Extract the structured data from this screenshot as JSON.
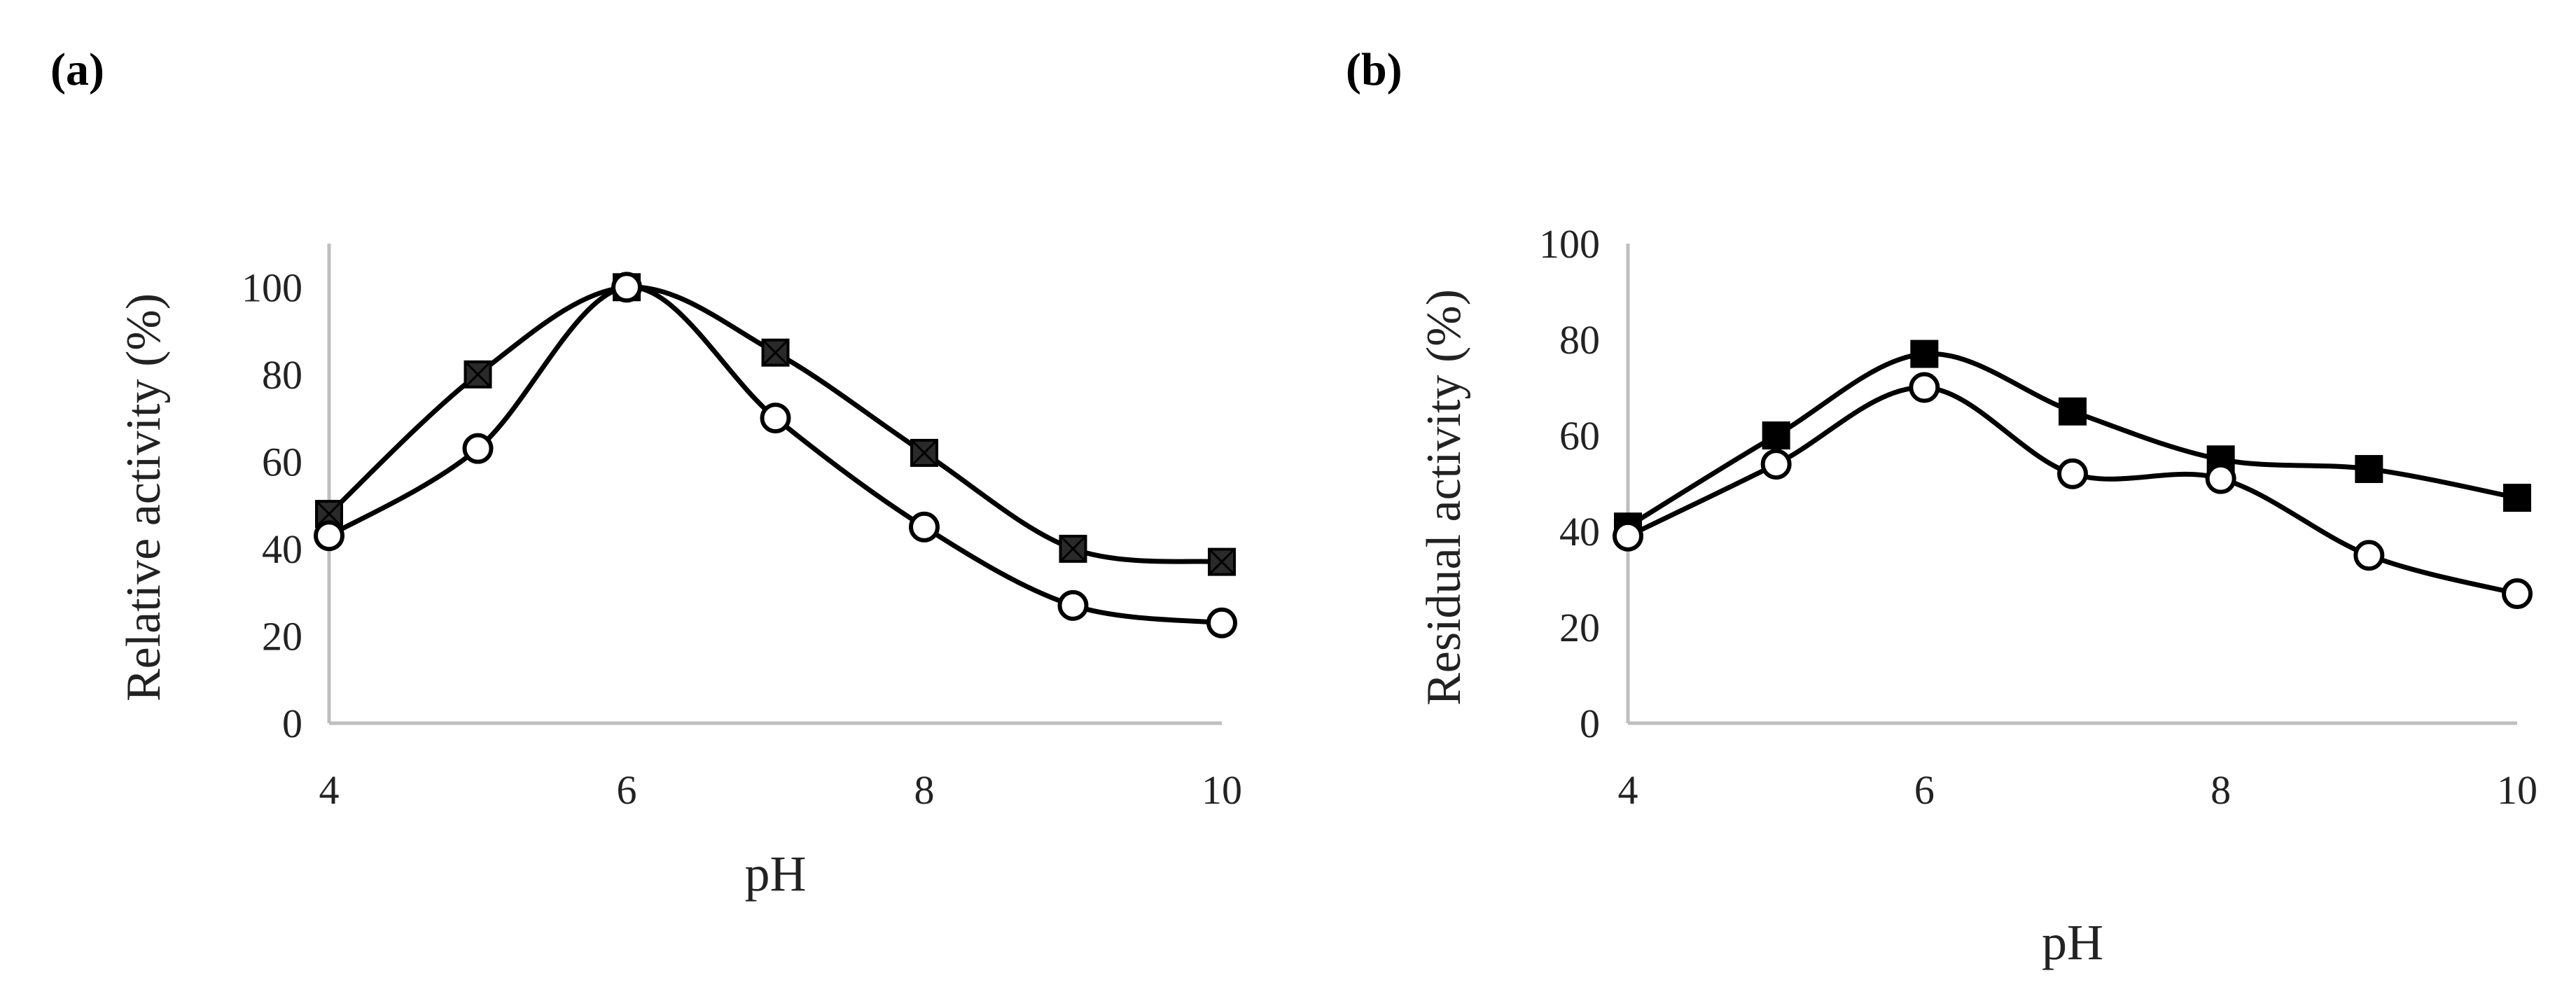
{
  "panels": {
    "a": {
      "label": "(a)"
    },
    "b": {
      "label": "(b)"
    }
  },
  "colors": {
    "axis": "#bfbfbf",
    "line": "#000000",
    "marker_fill_square": "#2a2a2a",
    "marker_fill_circle": "#ffffff"
  },
  "chart_data": [
    {
      "id": "a",
      "type": "line",
      "title": "",
      "xlabel": "pH",
      "ylabel": "Relative activity (%)",
      "x": [
        4,
        5,
        6,
        7,
        8,
        9,
        10
      ],
      "xlim": [
        4,
        10
      ],
      "ylim": [
        0,
        110
      ],
      "xticks": [
        4,
        6,
        8,
        10
      ],
      "yticks": [
        0,
        20,
        40,
        60,
        80,
        100
      ],
      "grid": false,
      "series": [
        {
          "name": "square-x series",
          "marker": "square-x",
          "values": [
            48,
            80,
            100,
            85,
            62,
            40,
            37
          ]
        },
        {
          "name": "open-circle series",
          "marker": "circle",
          "values": [
            43,
            63,
            100,
            70,
            45,
            27,
            23
          ]
        }
      ]
    },
    {
      "id": "b",
      "type": "line",
      "title": "",
      "xlabel": "pH",
      "ylabel": "Residual activity (%)",
      "x": [
        4,
        5,
        6,
        7,
        8,
        9,
        10
      ],
      "xlim": [
        4,
        10
      ],
      "ylim": [
        0,
        100
      ],
      "xticks": [
        4,
        6,
        8,
        10
      ],
      "yticks": [
        0,
        20,
        40,
        60,
        80,
        100
      ],
      "grid": false,
      "series": [
        {
          "name": "filled-square series",
          "marker": "square",
          "values": [
            41,
            60,
            77,
            65,
            55,
            53,
            47
          ]
        },
        {
          "name": "open-circle series",
          "marker": "circle",
          "values": [
            39,
            54,
            70,
            52,
            51,
            35,
            27
          ]
        }
      ]
    }
  ]
}
